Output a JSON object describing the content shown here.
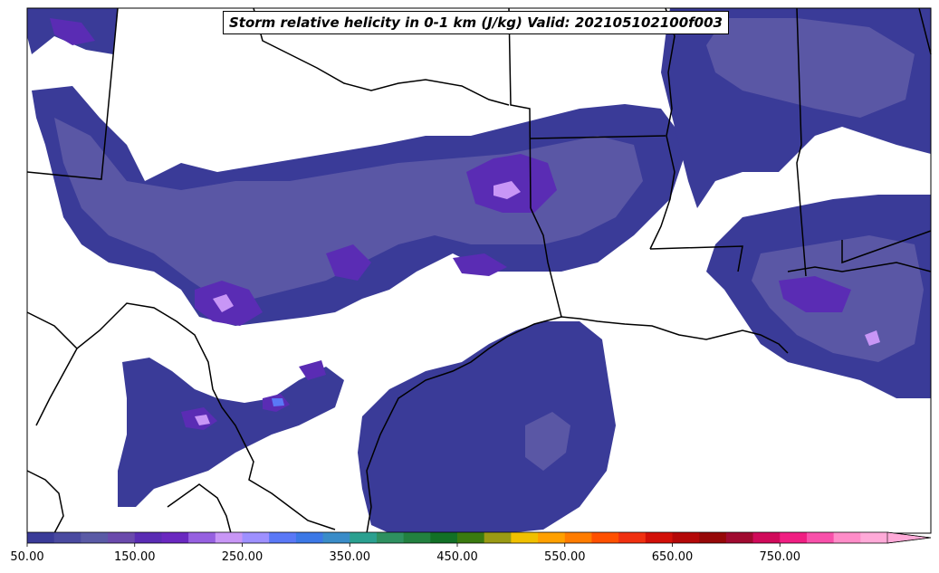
{
  "title": "Storm relative helicity in 0-1 km (J/kg) Valid: 202105102100f003",
  "colorbar": {
    "tick_labels": [
      "50.00",
      "150.00",
      "250.00",
      "350.00",
      "450.00",
      "550.00",
      "650.00",
      "750.00"
    ],
    "extend": "max",
    "colors": [
      "#3a3b98",
      "#4a4aa0",
      "#5a5aa6",
      "#6a4aac",
      "#5a2cb4",
      "#6a28c0",
      "#9660e0",
      "#c896f6",
      "#9e90ff",
      "#5a78f6",
      "#3c78e6",
      "#3a8cc8",
      "#2aa090",
      "#2e9060",
      "#228040",
      "#127026",
      "#3a7a10",
      "#9a9a14",
      "#f0c000",
      "#ffa000",
      "#ff7c00",
      "#ff5000",
      "#f03010",
      "#d21008",
      "#b40808",
      "#960808",
      "#a00a30",
      "#d00a5a",
      "#f01e82",
      "#f850aa",
      "#ff8cc8",
      "#ffaad8"
    ]
  },
  "map": {
    "fill_primary": "#3a3b98",
    "fill_secondary": "#5a57a5",
    "fill_strong": "#5a2cb4",
    "fill_peak": "#c896f6",
    "border_color": "#000000"
  }
}
